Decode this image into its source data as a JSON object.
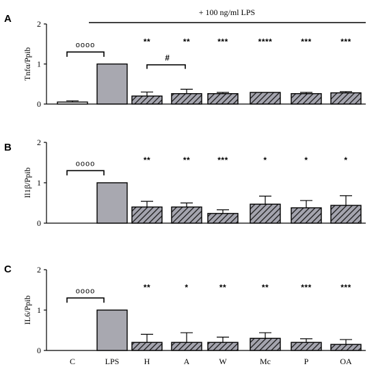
{
  "top_annotation": "+ 100 ng/ml LPS",
  "x_categories": [
    "C",
    "LPS",
    "H",
    "A",
    "W",
    "Mc",
    "P",
    "OA"
  ],
  "colors": {
    "control": "#ffffff",
    "lps": "#a8a8b0",
    "treated_hatch": "#9c9ca6",
    "stroke": "#000000"
  },
  "chart_data": [
    {
      "panel": "A",
      "type": "bar",
      "ylabel": "Tnfα/Ppib",
      "ylim": [
        0,
        2
      ],
      "yticks": [
        0,
        1,
        2
      ],
      "categories": [
        "C",
        "LPS",
        "H",
        "A",
        "W",
        "Mc",
        "P",
        "OA"
      ],
      "values": [
        0.05,
        1.0,
        0.2,
        0.26,
        0.26,
        0.29,
        0.26,
        0.28
      ],
      "errors": [
        0.03,
        0.0,
        0.1,
        0.11,
        0.03,
        0.0,
        0.03,
        0.03
      ],
      "significance": [
        "",
        "",
        "**",
        "**",
        "***",
        "****",
        "***",
        "***"
      ],
      "bracket": {
        "label": "oooo",
        "from": 0,
        "to": 1,
        "y": 1.3
      },
      "extra_bracket": {
        "label": "#",
        "from": 2,
        "to": 3,
        "y": 0.98
      }
    },
    {
      "panel": "B",
      "type": "bar",
      "ylabel": "Il1β/Ppib",
      "ylim": [
        0,
        2
      ],
      "yticks": [
        0,
        1,
        2
      ],
      "categories": [
        "C",
        "LPS",
        "H",
        "A",
        "W",
        "Mc",
        "P",
        "OA"
      ],
      "values": [
        0.0,
        1.0,
        0.4,
        0.4,
        0.24,
        0.47,
        0.38,
        0.44
      ],
      "errors": [
        0.0,
        0.0,
        0.14,
        0.1,
        0.09,
        0.2,
        0.18,
        0.24
      ],
      "significance": [
        "",
        "",
        "**",
        "**",
        "***",
        "*",
        "*",
        "*"
      ],
      "bracket": {
        "label": "oooo",
        "from": 0,
        "to": 1,
        "y": 1.3
      }
    },
    {
      "panel": "C",
      "type": "bar",
      "ylabel": "IL6/Ppib",
      "ylim": [
        0,
        2
      ],
      "yticks": [
        0,
        1,
        2
      ],
      "categories": [
        "C",
        "LPS",
        "H",
        "A",
        "W",
        "Mc",
        "P",
        "OA"
      ],
      "values": [
        0.0,
        1.0,
        0.2,
        0.2,
        0.2,
        0.3,
        0.2,
        0.15
      ],
      "errors": [
        0.0,
        0.0,
        0.2,
        0.24,
        0.13,
        0.14,
        0.09,
        0.12
      ],
      "significance": [
        "",
        "",
        "**",
        "*",
        "**",
        "**",
        "***",
        "***"
      ],
      "bracket": {
        "label": "oooo",
        "from": 0,
        "to": 1,
        "y": 1.3
      }
    }
  ]
}
